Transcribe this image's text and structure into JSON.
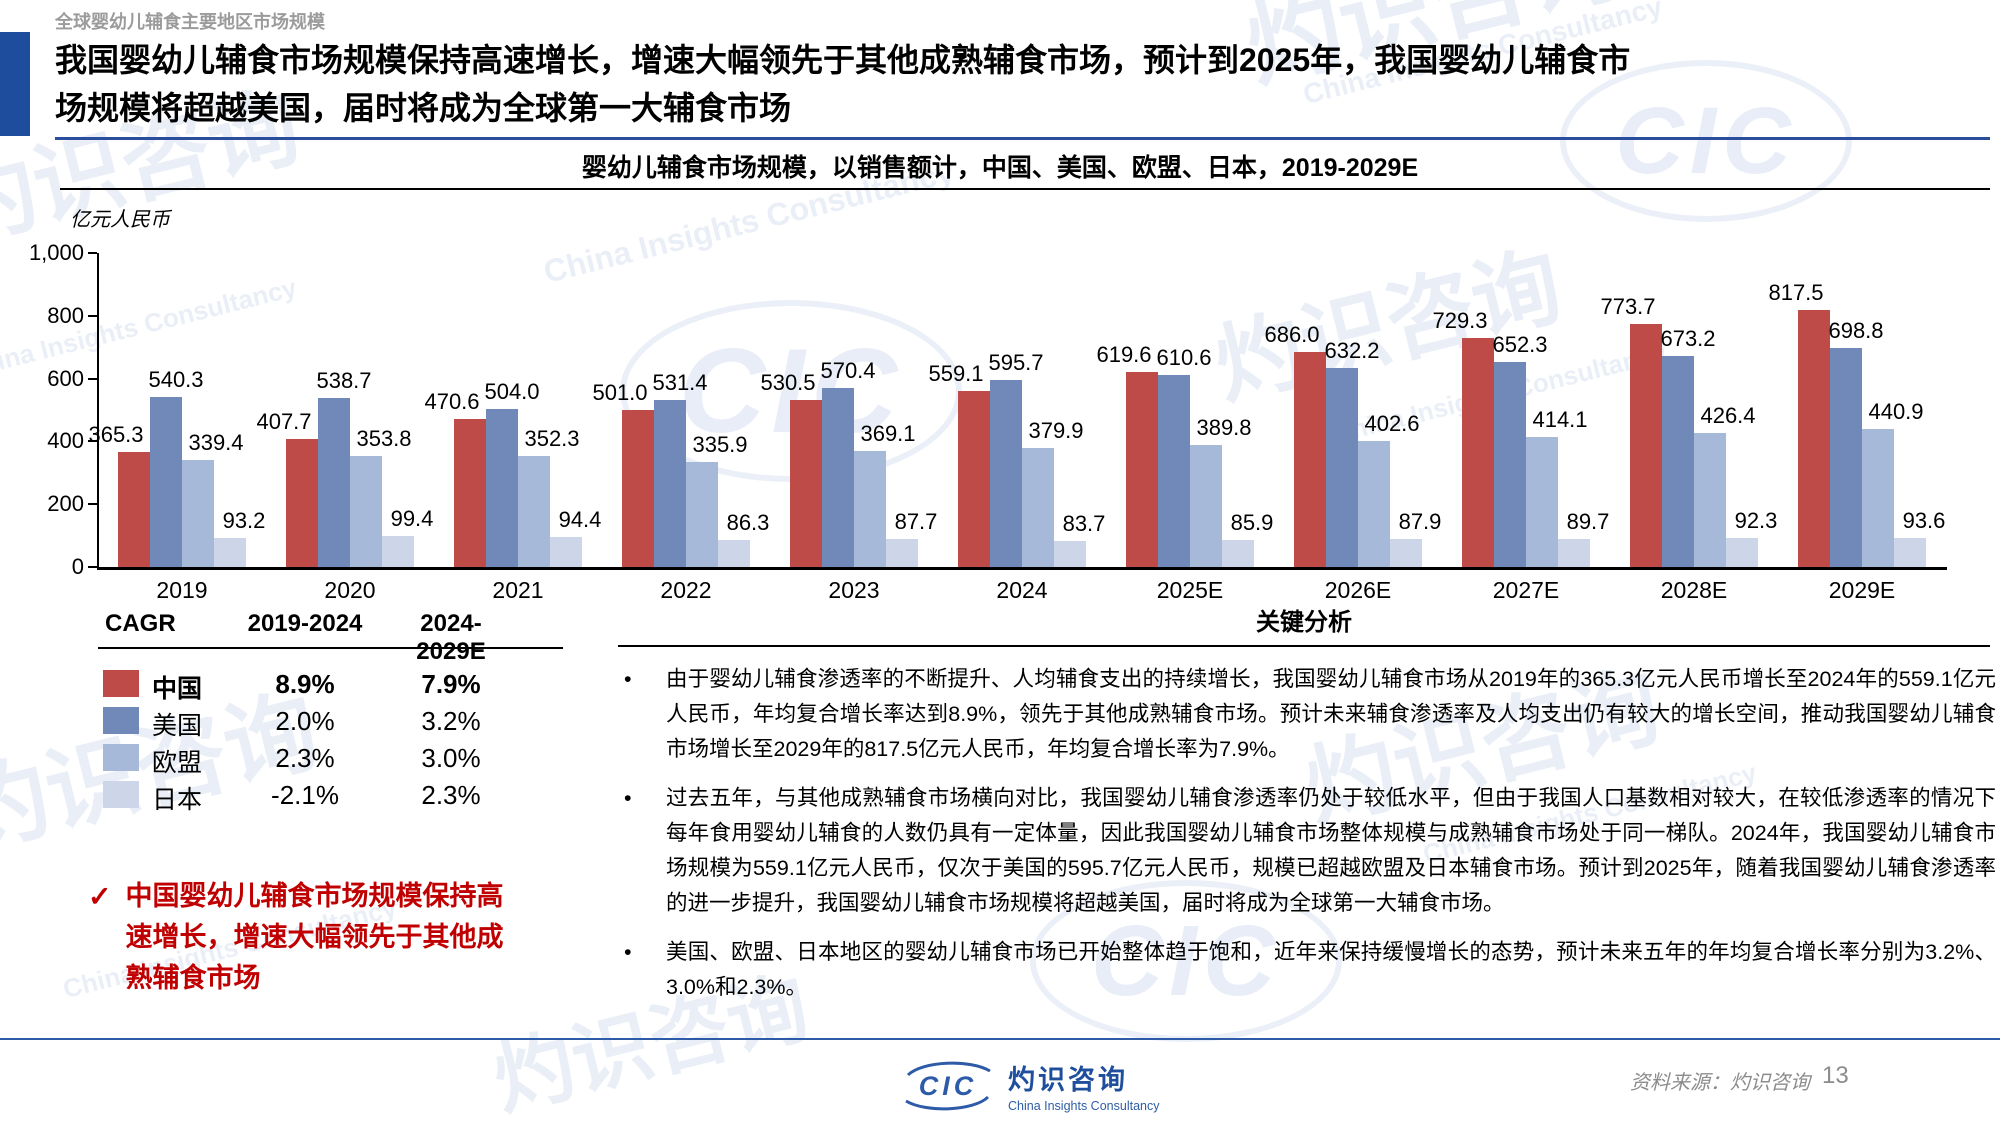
{
  "header": {
    "overline": "全球婴幼儿辅食主要地区市场规模",
    "title_lines": [
      "我国婴幼儿辅食市场规模保持高速增长，增速大幅领先于其他成熟辅食市场，预计到2025年，我国婴幼儿辅食市",
      "场规模将超越美国，届时将成为全球第一大辅食市场"
    ]
  },
  "chart_data": {
    "type": "bar",
    "title": "婴幼儿辅食市场规模，以销售额计，中国、美国、欧盟、日本，2019-2029E",
    "subtitle_main": "婴幼儿辅食市场规模，以销售额计，中国、美国、欧盟、日本，",
    "subtitle_range": "2019-2029E",
    "unit_label": "亿元人民币",
    "categories": [
      "2019",
      "2020",
      "2021",
      "2022",
      "2023",
      "2024",
      "2025E",
      "2026E",
      "2027E",
      "2028E",
      "2029E"
    ],
    "series": [
      {
        "name": "中国",
        "color": "#BE4B48",
        "values": [
          365.3,
          407.7,
          470.6,
          501.0,
          530.5,
          559.1,
          619.6,
          686.0,
          729.3,
          773.7,
          817.5
        ]
      },
      {
        "name": "美国",
        "color": "#7189B8",
        "values": [
          540.3,
          538.7,
          504.0,
          531.4,
          570.4,
          595.7,
          610.6,
          632.2,
          652.3,
          673.2,
          698.8
        ]
      },
      {
        "name": "欧盟",
        "color": "#A7B9D8",
        "values": [
          339.4,
          353.8,
          352.3,
          335.9,
          369.1,
          379.9,
          389.8,
          402.6,
          414.1,
          426.4,
          440.9
        ]
      },
      {
        "name": "日本",
        "color": "#CDD6E9",
        "values": [
          93.2,
          99.4,
          94.4,
          86.3,
          87.7,
          83.7,
          85.9,
          87.9,
          89.7,
          92.3,
          93.6
        ]
      }
    ],
    "ylim": [
      0,
      1000
    ],
    "yticks": [
      0,
      200,
      400,
      600,
      800,
      1000
    ],
    "ytick_labels": [
      "0",
      "200",
      "400",
      "600",
      "800",
      "1,000"
    ],
    "grid": false,
    "legend_position": "left-table"
  },
  "cagr_table": {
    "headers": [
      "CAGR",
      "2019-2024",
      "2024-2029E"
    ],
    "rows": [
      {
        "label": "中国",
        "color": "#BE4B48",
        "v1": "8.9%",
        "v2": "7.9%",
        "bold": true
      },
      {
        "label": "美国",
        "color": "#7189B8",
        "v1": "2.0%",
        "v2": "3.2%",
        "bold": false
      },
      {
        "label": "欧盟",
        "color": "#A7B9D8",
        "v1": "2.3%",
        "v2": "3.0%",
        "bold": false
      },
      {
        "label": "日本",
        "color": "#CDD6E9",
        "v1": "-2.1%",
        "v2": "2.3%",
        "bold": false
      }
    ]
  },
  "highlight": {
    "check": "✓",
    "text": "中国婴幼儿辅食市场规模保持高速增长，增速大幅领先于其他成熟辅食市场",
    "color": "#C00000"
  },
  "analysis": {
    "title": "关键分析",
    "bullets": [
      "由于婴幼儿辅食渗透率的不断提升、人均辅食支出的持续增长，我国婴幼儿辅食市场从2019年的365.3亿元人民币增长至2024年的559.1亿元人民币，年均复合增长率达到8.9%，领先于其他成熟辅食市场。预计未来辅食渗透率及人均支出仍有较大的增长空间，推动我国婴幼儿辅食市场增长至2029年的817.5亿元人民币，年均复合增长率为7.9%。",
      "过去五年，与其他成熟辅食市场横向对比，我国婴幼儿辅食渗透率仍处于较低水平，但由于我国人口基数相对较大，在较低渗透率的情况下每年食用婴幼儿辅食的人数仍具有一定体量，因此我国婴幼儿辅食市场整体规模与成熟辅食市场处于同一梯队。2024年，我国婴幼儿辅食市场规模为559.1亿元人民币，仅次于美国的595.7亿元人民币，规模已超越欧盟及日本辅食市场。预计到2025年，随着我国婴幼儿辅食渗透率的进一步提升，我国婴幼儿辅食市场规模将超越美国，届时将成为全球第一大辅食市场。",
      "美国、欧盟、日本地区的婴幼儿辅食市场已开始整体趋于饱和，近年来保持缓慢增长的态势，预计未来五年的年均复合增长率分别为3.2%、3.0%和2.3%。"
    ]
  },
  "footer": {
    "logo_abbr": "CIC",
    "logo_cn": "灼识咨询",
    "logo_en": "China Insights Consultancy",
    "source": "资料来源：灼识咨询",
    "page_number": "13"
  },
  "watermark": {
    "cn": "灼识咨询",
    "en": "China Insights Consultancy",
    "abbr": "CIC"
  },
  "colors": {
    "accent_blue": "#1F4D9E",
    "line_blue": "#2A4E9B",
    "footer_blue": "#2E5BA8",
    "highlight_red": "#C00000"
  }
}
